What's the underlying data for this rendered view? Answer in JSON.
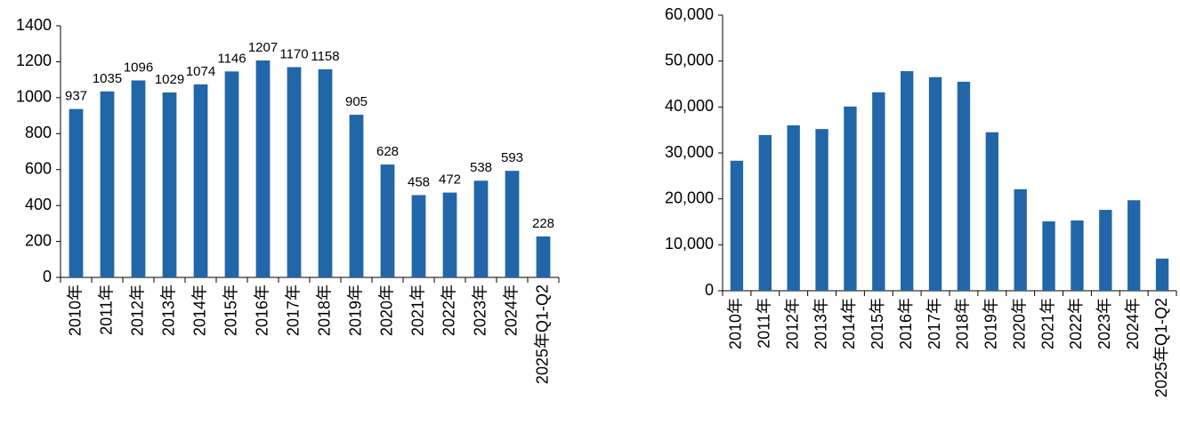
{
  "chart_data": [
    {
      "type": "bar",
      "color": "#2166a8",
      "categories": [
        "2010年",
        "2011年",
        "2012年",
        "2013年",
        "2014年",
        "2015年",
        "2016年",
        "2017年",
        "2018年",
        "2019年",
        "2020年",
        "2021年",
        "2022年",
        "2023年",
        "2024年",
        "2025年Q1-Q2"
      ],
      "values": [
        937,
        1035,
        1096,
        1029,
        1074,
        1146,
        1207,
        1170,
        1158,
        905,
        628,
        458,
        472,
        538,
        593,
        228
      ],
      "data_labels": true,
      "ylim": [
        0,
        1400
      ],
      "yticks": [
        0,
        200,
        400,
        600,
        800,
        1000,
        1200,
        1400
      ]
    },
    {
      "type": "bar",
      "color": "#2166a8",
      "categories": [
        "2010年",
        "2011年",
        "2012年",
        "2013年",
        "2014年",
        "2015年",
        "2016年",
        "2017年",
        "2018年",
        "2019年",
        "2020年",
        "2021年",
        "2022年",
        "2023年",
        "2024年",
        "2025年Q1-Q2"
      ],
      "values": [
        28300,
        33900,
        36000,
        35200,
        40100,
        43200,
        47800,
        46500,
        45500,
        34500,
        22100,
        15100,
        15300,
        17600,
        19700,
        7000
      ],
      "data_labels": false,
      "ylim": [
        0,
        60000
      ],
      "yticks": [
        0,
        {
          "value": 10000,
          "label": "10,000"
        },
        {
          "value": 20000,
          "label": "20,000"
        },
        {
          "value": 30000,
          "label": "30,000"
        },
        {
          "value": 40000,
          "label": "40,000"
        },
        {
          "value": 50000,
          "label": "50,000"
        },
        {
          "value": 60000,
          "label": "60,000"
        }
      ]
    }
  ]
}
